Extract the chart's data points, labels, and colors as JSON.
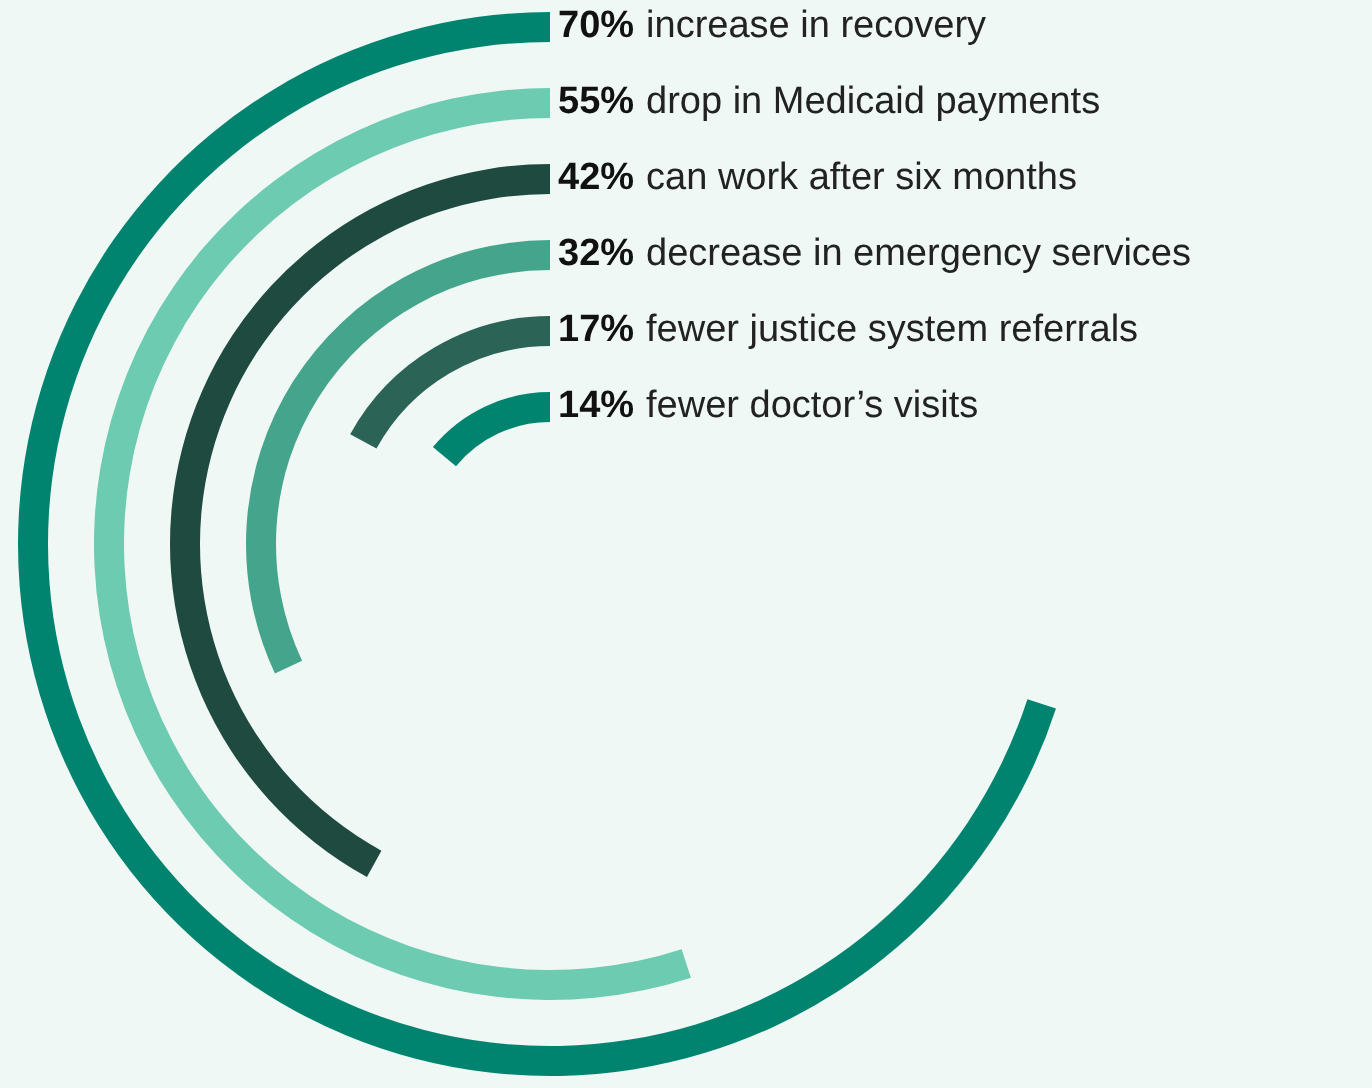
{
  "chart_data": {
    "type": "other",
    "categories": [
      "increase in recovery",
      "drop in Medicaid payments",
      "can work after six months",
      "decrease in emergency services",
      "fewer justice system referrals",
      "fewer doctor’s visits"
    ],
    "values": [
      70,
      55,
      42,
      32,
      17,
      14
    ],
    "value_labels": [
      "70%",
      "55%",
      "42%",
      "32%",
      "17%",
      "14%"
    ],
    "colors": [
      "#00846f",
      "#6ccbb0",
      "#1f4a40",
      "#45a58c",
      "#2b6356",
      "#00846f"
    ]
  }
}
